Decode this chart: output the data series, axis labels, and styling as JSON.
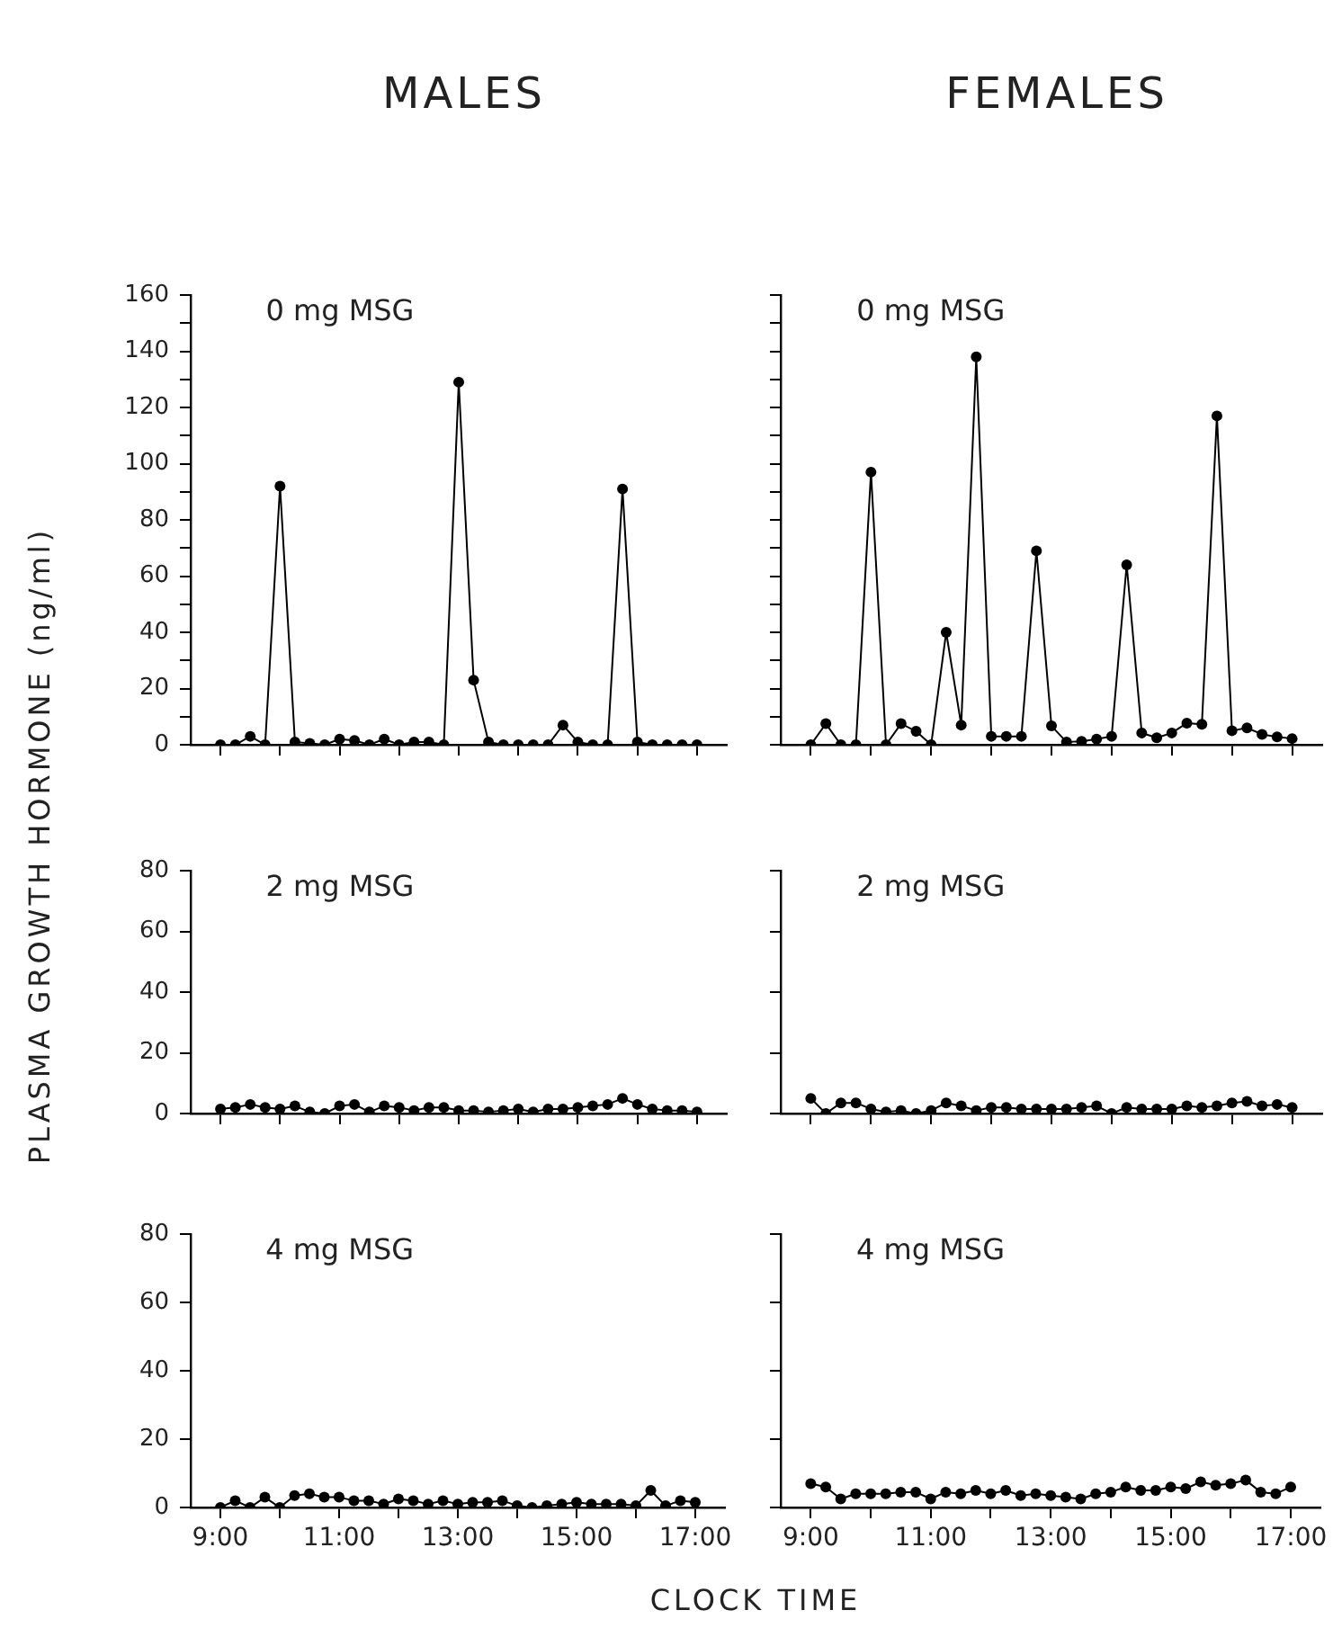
{
  "chart_data": [
    {
      "type": "line",
      "title": "MALES",
      "annotations": [
        "0 mg MSG"
      ],
      "ylabel": "PLASMA GROWTH HORMONE (ng/ml)",
      "marker": "circle",
      "tick_labels": "y",
      "x": [
        9,
        9.25,
        9.5,
        9.75,
        10,
        10.25,
        10.5,
        10.75,
        11,
        11.25,
        11.5,
        11.75,
        12,
        12.25,
        12.5,
        12.75,
        13,
        13.25,
        13.5,
        13.75,
        14,
        14.25,
        14.5,
        14.75,
        15,
        15.25,
        15.5,
        15.75,
        16,
        16.25,
        16.5,
        16.75,
        17
      ],
      "series": [
        {
          "color": "#000000",
          "values": [
            0,
            0,
            3,
            0,
            92,
            1,
            0.5,
            0,
            2,
            1.5,
            0,
            2,
            0,
            1,
            1,
            0,
            129,
            23,
            1,
            0,
            0,
            0,
            0,
            7,
            1,
            0,
            0,
            91,
            1,
            0,
            0,
            0,
            0
          ]
        }
      ],
      "xlim": [
        8.5,
        17.5
      ],
      "xticks": [
        {
          "value": 9,
          "label": null
        },
        {
          "value": 10,
          "label": null
        },
        {
          "value": 11,
          "label": null
        },
        {
          "value": 12,
          "label": null
        },
        {
          "value": 13,
          "label": null
        },
        {
          "value": 14,
          "label": null
        },
        {
          "value": 15,
          "label": null
        },
        {
          "value": 16,
          "label": null
        },
        {
          "value": 17,
          "label": null
        }
      ],
      "ylim": [
        0,
        160
      ],
      "yticks": [
        0,
        {
          "value": 10,
          "label": null
        },
        20,
        {
          "value": 30,
          "label": null
        },
        40,
        {
          "value": 50,
          "label": null
        },
        60,
        {
          "value": 70,
          "label": null
        },
        80,
        {
          "value": 90,
          "label": null
        },
        100,
        {
          "value": 110,
          "label": null
        },
        120,
        {
          "value": 130,
          "label": null
        },
        140,
        {
          "value": 150,
          "label": null
        },
        160
      ]
    },
    {
      "type": "line",
      "title": "FEMALES",
      "annotations": [
        "0 mg MSG"
      ],
      "marker": "circle",
      "tick_labels": false,
      "x": [
        9,
        9.25,
        9.5,
        9.75,
        10,
        10.25,
        10.5,
        10.75,
        11,
        11.25,
        11.5,
        11.75,
        12,
        12.25,
        12.5,
        12.75,
        13,
        13.25,
        13.5,
        13.75,
        14,
        14.25,
        14.5,
        14.75,
        15,
        15.25,
        15.5,
        15.75,
        16,
        16.25,
        16.5,
        16.75,
        17
      ],
      "series": [
        {
          "color": "#000000",
          "values": [
            0,
            7.5,
            0,
            0,
            97,
            0,
            7.5,
            4.8,
            0,
            40,
            7,
            138,
            3,
            3,
            3,
            69,
            6.7,
            1,
            1.2,
            2,
            3,
            64,
            4.2,
            2.5,
            4.2,
            7.7,
            7.3,
            117,
            5,
            6,
            3.7,
            2.8,
            2.2
          ]
        }
      ],
      "xlim": [
        8.5,
        17.5
      ],
      "xticks": [
        {
          "value": 9,
          "label": null
        },
        {
          "value": 10,
          "label": null
        },
        {
          "value": 11,
          "label": null
        },
        {
          "value": 12,
          "label": null
        },
        {
          "value": 13,
          "label": null
        },
        {
          "value": 14,
          "label": null
        },
        {
          "value": 15,
          "label": null
        },
        {
          "value": 16,
          "label": null
        },
        {
          "value": 17,
          "label": null
        }
      ],
      "ylim": [
        0,
        160
      ],
      "yticks": [
        {
          "value": 0,
          "label": null
        },
        {
          "value": 10,
          "label": null
        },
        {
          "value": 20,
          "label": null
        },
        {
          "value": 30,
          "label": null
        },
        {
          "value": 40,
          "label": null
        },
        {
          "value": 50,
          "label": null
        },
        {
          "value": 60,
          "label": null
        },
        {
          "value": 70,
          "label": null
        },
        {
          "value": 80,
          "label": null
        },
        {
          "value": 90,
          "label": null
        },
        {
          "value": 100,
          "label": null
        },
        {
          "value": 110,
          "label": null
        },
        {
          "value": 120,
          "label": null
        },
        {
          "value": 130,
          "label": null
        },
        {
          "value": 140,
          "label": null
        },
        {
          "value": 150,
          "label": null
        },
        {
          "value": 160,
          "label": null
        }
      ]
    },
    {
      "type": "line",
      "annotations": [
        "2 mg MSG"
      ],
      "marker": "circle",
      "tick_labels": "y",
      "x": [
        9,
        9.25,
        9.5,
        9.75,
        10,
        10.25,
        10.5,
        10.75,
        11,
        11.25,
        11.5,
        11.75,
        12,
        12.25,
        12.5,
        12.75,
        13,
        13.25,
        13.5,
        13.75,
        14,
        14.25,
        14.5,
        14.75,
        15,
        15.25,
        15.5,
        15.75,
        16,
        16.25,
        16.5,
        16.75,
        17
      ],
      "series": [
        {
          "color": "#000000",
          "values": [
            1.5,
            2,
            3,
            2,
            1.5,
            2.5,
            0.5,
            0,
            2.5,
            3,
            0.5,
            2.5,
            2,
            1,
            2,
            2,
            1,
            1,
            0.5,
            1,
            1.5,
            0.5,
            1.5,
            1.5,
            2,
            2.5,
            3,
            5,
            3,
            1.5,
            1,
            1,
            0.5
          ]
        }
      ],
      "xlim": [
        8.5,
        17.5
      ],
      "xticks": [
        {
          "value": 9,
          "label": null
        },
        {
          "value": 10,
          "label": null
        },
        {
          "value": 11,
          "label": null
        },
        {
          "value": 12,
          "label": null
        },
        {
          "value": 13,
          "label": null
        },
        {
          "value": 14,
          "label": null
        },
        {
          "value": 15,
          "label": null
        },
        {
          "value": 16,
          "label": null
        },
        {
          "value": 17,
          "label": null
        }
      ],
      "ylim": [
        0,
        80
      ],
      "yticks": [
        0,
        20,
        40,
        60,
        80
      ]
    },
    {
      "type": "line",
      "annotations": [
        "2 mg MSG"
      ],
      "marker": "circle",
      "tick_labels": false,
      "x": [
        9,
        9.25,
        9.5,
        9.75,
        10,
        10.25,
        10.5,
        10.75,
        11,
        11.25,
        11.5,
        11.75,
        12,
        12.25,
        12.5,
        12.75,
        13,
        13.25,
        13.5,
        13.75,
        14,
        14.25,
        14.5,
        14.75,
        15,
        15.25,
        15.5,
        15.75,
        16,
        16.25,
        16.5,
        16.75,
        17
      ],
      "series": [
        {
          "color": "#000000",
          "values": [
            5,
            0,
            3.5,
            3.5,
            1.5,
            0.5,
            1,
            0,
            1,
            3.5,
            2.5,
            1,
            2,
            2,
            1.5,
            1.5,
            1.5,
            1.5,
            2,
            2.5,
            0,
            2,
            1.5,
            1.5,
            1.5,
            2.5,
            2,
            2.5,
            3.5,
            4,
            2.5,
            3,
            2
          ]
        }
      ],
      "xlim": [
        8.5,
        17.5
      ],
      "xticks": [
        {
          "value": 9,
          "label": null
        },
        {
          "value": 10,
          "label": null
        },
        {
          "value": 11,
          "label": null
        },
        {
          "value": 12,
          "label": null
        },
        {
          "value": 13,
          "label": null
        },
        {
          "value": 14,
          "label": null
        },
        {
          "value": 15,
          "label": null
        },
        {
          "value": 16,
          "label": null
        },
        {
          "value": 17,
          "label": null
        }
      ],
      "ylim": [
        0,
        80
      ],
      "yticks": [
        {
          "value": 0,
          "label": null
        },
        {
          "value": 20,
          "label": null
        },
        {
          "value": 40,
          "label": null
        },
        {
          "value": 60,
          "label": null
        },
        {
          "value": 80,
          "label": null
        }
      ]
    },
    {
      "type": "line",
      "annotations": [
        "4 mg MSG"
      ],
      "xlabel": "CLOCK TIME",
      "marker": "circle",
      "x": [
        9,
        9.25,
        9.5,
        9.75,
        10,
        10.25,
        10.5,
        10.75,
        11,
        11.25,
        11.5,
        11.75,
        12,
        12.25,
        12.5,
        12.75,
        13,
        13.25,
        13.5,
        13.75,
        14,
        14.25,
        14.5,
        14.75,
        15,
        15.25,
        15.5,
        15.75,
        16,
        16.25,
        16.5,
        16.75,
        17
      ],
      "series": [
        {
          "color": "#000000",
          "values": [
            0,
            2,
            0,
            3,
            0,
            3.5,
            4,
            3,
            3,
            2,
            2,
            1,
            2.5,
            2,
            1,
            2,
            1,
            1.5,
            1.5,
            2,
            0.5,
            0,
            0.5,
            1,
            1.5,
            1,
            1,
            1,
            0.5,
            5,
            0.5,
            2,
            1.5
          ]
        }
      ],
      "xlim": [
        8.5,
        17.5
      ],
      "xticks": [
        {
          "value": 9,
          "label": "9:00"
        },
        {
          "value": 10,
          "label": null
        },
        {
          "value": 11,
          "label": "11:00"
        },
        {
          "value": 12,
          "label": null
        },
        {
          "value": 13,
          "label": "13:00"
        },
        {
          "value": 14,
          "label": null
        },
        {
          "value": 15,
          "label": "15:00"
        },
        {
          "value": 16,
          "label": null
        },
        {
          "value": 17,
          "label": "17:00"
        }
      ],
      "ylim": [
        0,
        80
      ],
      "yticks": [
        0,
        20,
        40,
        60,
        80
      ]
    },
    {
      "type": "line",
      "annotations": [
        "4 mg MSG"
      ],
      "marker": "circle",
      "tick_labels": "x",
      "x": [
        9,
        9.25,
        9.5,
        9.75,
        10,
        10.25,
        10.5,
        10.75,
        11,
        11.25,
        11.5,
        11.75,
        12,
        12.25,
        12.5,
        12.75,
        13,
        13.25,
        13.5,
        13.75,
        14,
        14.25,
        14.5,
        14.75,
        15,
        15.25,
        15.5,
        15.75,
        16,
        16.25,
        16.5,
        16.75,
        17
      ],
      "series": [
        {
          "color": "#000000",
          "values": [
            7,
            6,
            2.5,
            4,
            4,
            4,
            4.5,
            4.5,
            2.5,
            4.5,
            4,
            5,
            4,
            5,
            3.5,
            4,
            3.5,
            3,
            2.5,
            4,
            4.5,
            6,
            5,
            5,
            6,
            5.5,
            7.5,
            6.5,
            7,
            8,
            4.5,
            4,
            6
          ]
        }
      ],
      "xlim": [
        8.5,
        17.5
      ],
      "xticks": [
        {
          "value": 9,
          "label": "9:00"
        },
        {
          "value": 10,
          "label": null
        },
        {
          "value": 11,
          "label": "11:00"
        },
        {
          "value": 12,
          "label": null
        },
        {
          "value": 13,
          "label": "13:00"
        },
        {
          "value": 14,
          "label": null
        },
        {
          "value": 15,
          "label": "15:00"
        },
        {
          "value": 16,
          "label": null
        },
        {
          "value": 17,
          "label": "17:00"
        }
      ],
      "ylim": [
        0,
        80
      ],
      "yticks": [
        {
          "value": 0,
          "label": null
        },
        {
          "value": 20,
          "label": null
        },
        {
          "value": 40,
          "label": null
        },
        {
          "value": 60,
          "label": null
        },
        {
          "value": 80,
          "label": null
        }
      ]
    }
  ]
}
